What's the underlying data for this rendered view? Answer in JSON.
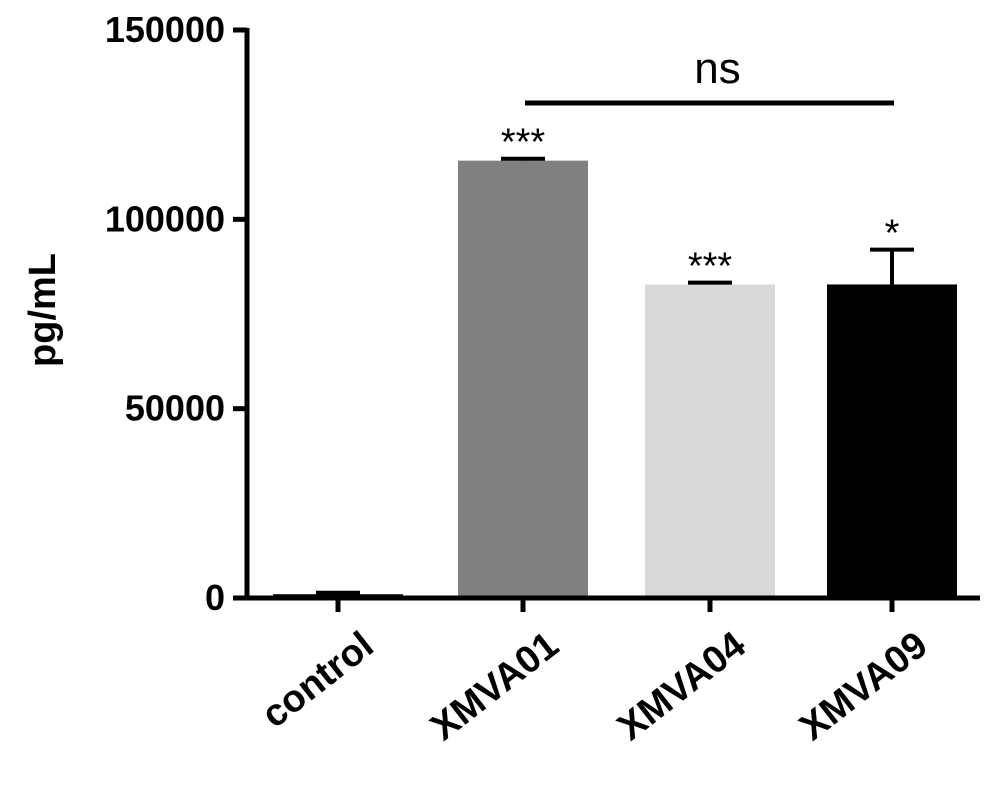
{
  "chart_data": {
    "type": "bar",
    "categories": [
      "control",
      "XMVA01",
      "XMVA04",
      "XMVA09"
    ],
    "values": [
      1000,
      115500,
      82800,
      82800
    ],
    "errors": [
      400,
      500,
      500,
      9200
    ],
    "significance": [
      "",
      "***",
      "***",
      "*"
    ],
    "colors": [
      "#000000",
      "#808080",
      "#d9d9d9",
      "#000000"
    ],
    "ylabel": "pg/mL",
    "xlabel": "",
    "title": "",
    "ylim": [
      0,
      150000
    ],
    "yticks": [
      0,
      50000,
      100000,
      150000
    ],
    "ytick_labels": [
      "0",
      "50000",
      "100000",
      "150000"
    ],
    "comparison": {
      "from": "XMVA01",
      "to": "XMVA09",
      "label": "ns"
    },
    "grid": false,
    "legend": "none"
  }
}
